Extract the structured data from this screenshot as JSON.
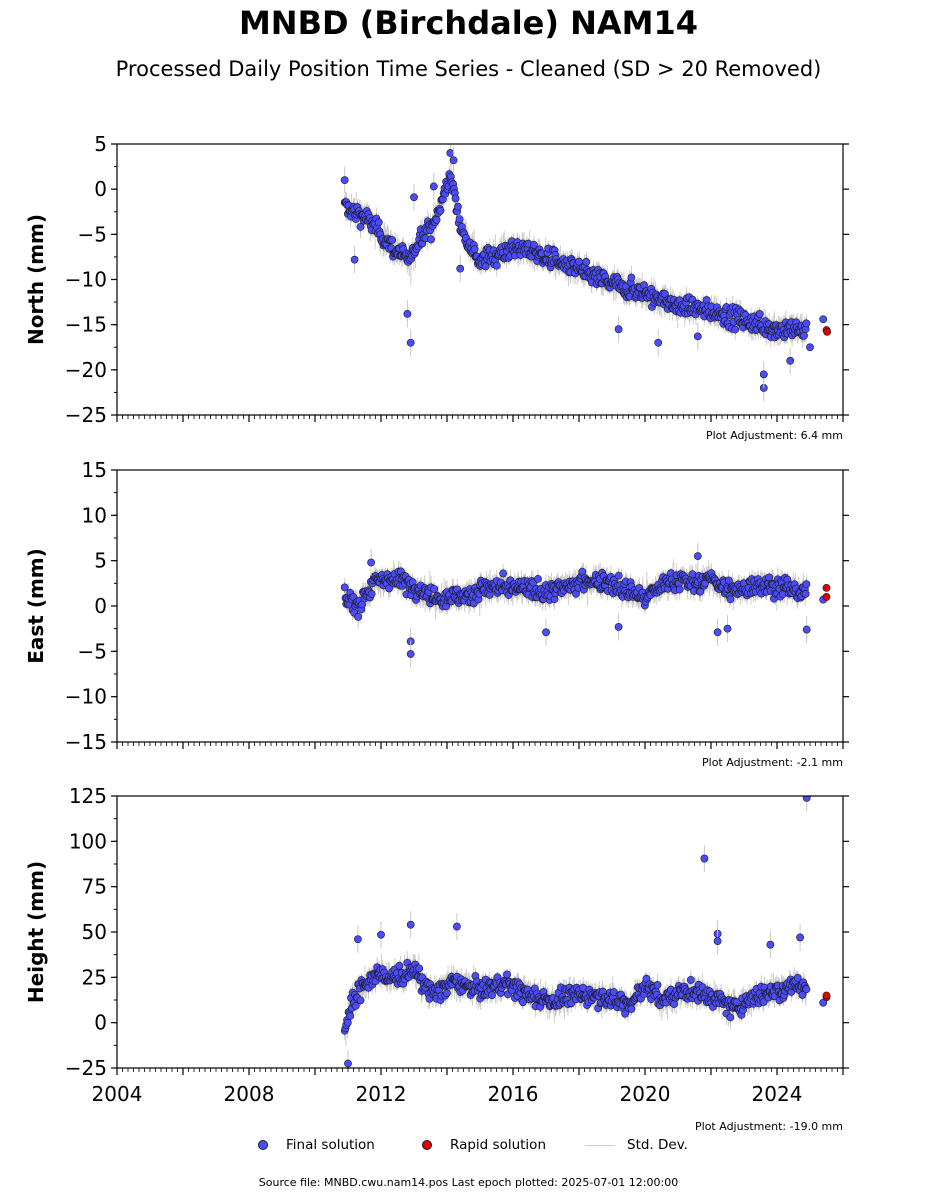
{
  "title": "MNBD (Birchdale) NAM14",
  "subtitle": "Processed Daily Position Time Series - Cleaned (SD > 20 Removed)",
  "legend": {
    "final_label": "Final solution",
    "rapid_label": "Rapid solution",
    "std_label": "Std. Dev."
  },
  "footer": "Source file: MNBD.cwu.nam14.pos  Last epoch plotted: 2025-07-01 12:00:00",
  "colors": {
    "final": "#4b4bff",
    "final_edge": "#1a1a1a",
    "rapid": "#e00000",
    "std": "#c8c8c8",
    "std_dense": "#555555"
  },
  "chart_data": [
    {
      "type": "scatter",
      "name": "north",
      "ylabel": "North (mm)",
      "ylim": [
        -25,
        5
      ],
      "yticks": [
        5,
        0,
        -5,
        -10,
        -15,
        -20,
        -25
      ],
      "ytick_labels": [
        "5",
        "0",
        "−5",
        "−10",
        "−15",
        "−20",
        "−25"
      ],
      "xlim": [
        2004,
        2026
      ],
      "adjustment": "Plot Adjustment: 6.4 mm",
      "trend_points": [
        [
          2010.9,
          -2
        ],
        [
          2011.5,
          -3
        ],
        [
          2012.0,
          -5
        ],
        [
          2012.5,
          -7
        ],
        [
          2012.9,
          -8
        ],
        [
          2013.2,
          -5
        ],
        [
          2013.6,
          -4
        ],
        [
          2014.1,
          1.5
        ],
        [
          2014.4,
          -4
        ],
        [
          2015.0,
          -8
        ],
        [
          2015.6,
          -7
        ],
        [
          2016.2,
          -6.5
        ],
        [
          2017.0,
          -7.5
        ],
        [
          2018.0,
          -9
        ],
        [
          2019.0,
          -10.5
        ],
        [
          2020.0,
          -11.5
        ],
        [
          2021.0,
          -13
        ],
        [
          2022.0,
          -13.5
        ],
        [
          2023.0,
          -14.5
        ],
        [
          2024.0,
          -15.5
        ],
        [
          2024.9,
          -15.5
        ]
      ],
      "outliers": [
        [
          2010.9,
          1.0
        ],
        [
          2011.2,
          -7.8
        ],
        [
          2012.8,
          -13.8
        ],
        [
          2012.9,
          -17.0
        ],
        [
          2013.0,
          -0.9
        ],
        [
          2013.6,
          0.3
        ],
        [
          2014.1,
          4.0
        ],
        [
          2014.2,
          3.2
        ],
        [
          2014.4,
          -8.8
        ],
        [
          2019.2,
          -15.5
        ],
        [
          2020.4,
          -17.0
        ],
        [
          2021.6,
          -16.3
        ],
        [
          2023.6,
          -22.0
        ],
        [
          2023.6,
          -20.5
        ],
        [
          2024.4,
          -19.0
        ]
      ],
      "final_tail": [
        [
          2025.0,
          -17.5
        ],
        [
          2025.4,
          -14.4
        ]
      ],
      "rapid": [
        [
          2025.5,
          -15.6
        ],
        [
          2025.52,
          -15.8
        ]
      ]
    },
    {
      "type": "scatter",
      "name": "east",
      "ylabel": "East (mm)",
      "ylim": [
        -15,
        15
      ],
      "yticks": [
        15,
        10,
        5,
        0,
        -5,
        -10,
        -15
      ],
      "ytick_labels": [
        "15",
        "10",
        "5",
        "0",
        "−5",
        "−10",
        "−15"
      ],
      "xlim": [
        2004,
        2026
      ],
      "adjustment": "Plot Adjustment: -2.1 mm",
      "trend_points": [
        [
          2010.9,
          1
        ],
        [
          2011.3,
          0
        ],
        [
          2011.8,
          2.5
        ],
        [
          2012.4,
          3
        ],
        [
          2013.0,
          2
        ],
        [
          2013.6,
          1
        ],
        [
          2014.5,
          1
        ],
        [
          2015.2,
          2
        ],
        [
          2016.0,
          2
        ],
        [
          2017.0,
          1.5
        ],
        [
          2018.0,
          2.5
        ],
        [
          2018.7,
          3
        ],
        [
          2019.3,
          2
        ],
        [
          2020.0,
          1
        ],
        [
          2020.8,
          3
        ],
        [
          2021.5,
          2.5
        ],
        [
          2022.0,
          3
        ],
        [
          2022.7,
          1.5
        ],
        [
          2023.4,
          2.5
        ],
        [
          2024.2,
          2
        ],
        [
          2024.9,
          1.5
        ]
      ],
      "outliers": [
        [
          2012.9,
          -3.9
        ],
        [
          2012.9,
          -5.3
        ],
        [
          2011.7,
          4.8
        ],
        [
          2017.0,
          -2.9
        ],
        [
          2019.2,
          -2.3
        ],
        [
          2021.6,
          5.5
        ],
        [
          2022.2,
          -2.9
        ],
        [
          2022.5,
          -2.5
        ],
        [
          2024.9,
          -2.6
        ]
      ],
      "final_tail": [
        [
          2025.4,
          0.7
        ]
      ],
      "rapid": [
        [
          2025.5,
          2.0
        ],
        [
          2025.5,
          1.0
        ]
      ]
    },
    {
      "type": "scatter",
      "name": "height",
      "ylabel": "Height (mm)",
      "ylim": [
        -25,
        125
      ],
      "yticks": [
        125,
        100,
        75,
        50,
        25,
        0,
        -25
      ],
      "ytick_labels": [
        "125",
        "100",
        "75",
        "50",
        "25",
        "0",
        "−25"
      ],
      "xlim": [
        2004,
        2026
      ],
      "xticks": [
        2004,
        2008,
        2012,
        2016,
        2020,
        2024
      ],
      "xtick_labels": [
        "2004",
        "2008",
        "2012",
        "2016",
        "2020",
        "2024"
      ],
      "adjustment": "Plot Adjustment: -19.0 mm",
      "trend_points": [
        [
          2010.9,
          -5
        ],
        [
          2011.1,
          10
        ],
        [
          2011.5,
          22
        ],
        [
          2012.0,
          27
        ],
        [
          2012.6,
          25
        ],
        [
          2013.0,
          30
        ],
        [
          2013.5,
          15
        ],
        [
          2014.2,
          22
        ],
        [
          2015.0,
          18
        ],
        [
          2015.8,
          22
        ],
        [
          2016.5,
          15
        ],
        [
          2017.2,
          12
        ],
        [
          2018.0,
          16
        ],
        [
          2018.8,
          14
        ],
        [
          2019.5,
          10
        ],
        [
          2020.0,
          20
        ],
        [
          2020.6,
          12
        ],
        [
          2021.2,
          18
        ],
        [
          2022.0,
          15
        ],
        [
          2022.6,
          8
        ],
        [
          2023.3,
          14
        ],
        [
          2024.0,
          18
        ],
        [
          2024.6,
          22
        ],
        [
          2024.9,
          18
        ]
      ],
      "outliers": [
        [
          2011.0,
          -22.5
        ],
        [
          2011.3,
          46
        ],
        [
          2012.0,
          48.5
        ],
        [
          2012.9,
          54
        ],
        [
          2014.3,
          53
        ],
        [
          2021.8,
          90.5
        ],
        [
          2022.2,
          49
        ],
        [
          2022.2,
          45
        ],
        [
          2023.8,
          43
        ],
        [
          2024.7,
          47
        ],
        [
          2024.9,
          124
        ]
      ],
      "final_tail": [
        [
          2025.4,
          11
        ]
      ],
      "rapid": [
        [
          2025.5,
          14
        ],
        [
          2025.5,
          15
        ]
      ]
    }
  ]
}
